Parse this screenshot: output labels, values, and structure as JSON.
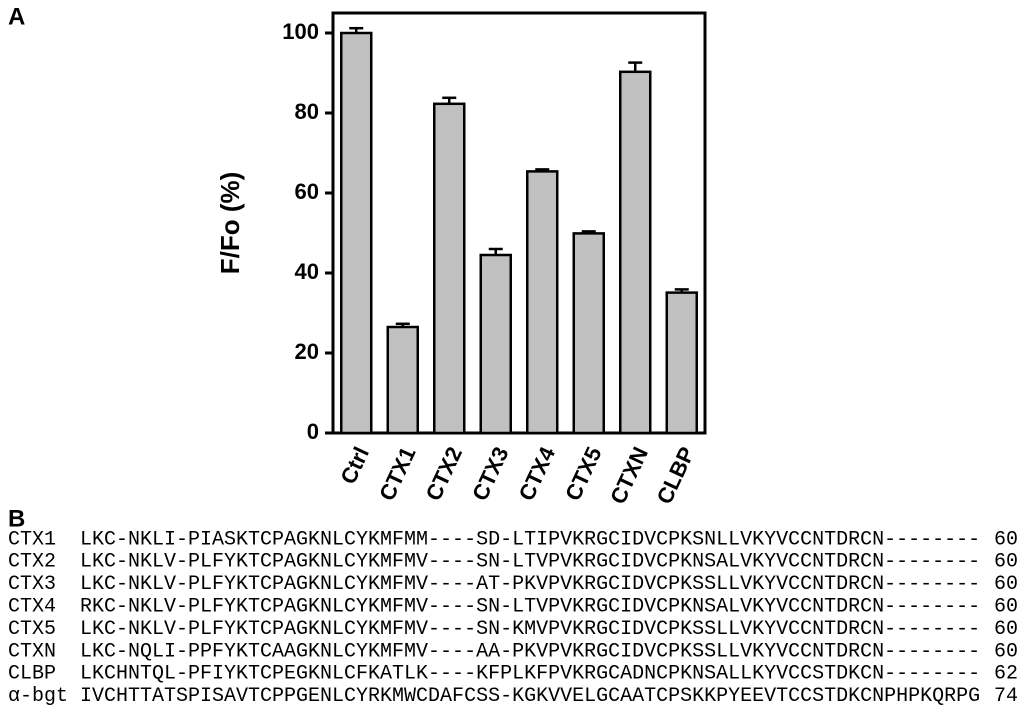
{
  "panel_labels": [
    "A",
    "B"
  ],
  "chart_data": {
    "type": "bar",
    "y_label": "F/Fo (%)",
    "categories": [
      "Ctrl",
      "CTX1",
      "CTX2",
      "CTX3",
      "CTX4",
      "CTX5",
      "CTXN",
      "CLBP"
    ],
    "values": [
      100,
      26.5,
      82.3,
      44.5,
      65.4,
      49.9,
      90.3,
      35.1
    ],
    "errors": [
      1.2,
      0.8,
      1.5,
      1.5,
      0.5,
      0.5,
      2.3,
      0.8
    ],
    "color": "#c0c0c0",
    "ylim": [
      0,
      105
    ],
    "yticks": [
      0,
      20,
      40,
      60,
      80,
      100
    ],
    "grid": false
  },
  "alignment": {
    "rows": [
      [
        "CTX1",
        "LKC-NKLI-PIASKTCPAGKNLCYKMFMM----SD-LTIPVKRGCIDVCPKSNLLVKYVCCNTDRCN--------",
        "60"
      ],
      [
        "CTX2",
        "LKC-NKLV-PLFYKTCPAGKNLCYKMFMV----SN-LTVPVKRGCIDVCPKNSALVKYVCCNTDRCN--------",
        "60"
      ],
      [
        "CTX3",
        "LKC-NKLV-PLFYKTCPAGKNLCYKMFMV----AT-PKVPVKRGCIDVCPKSSLLVKYVCCNTDRCN--------",
        "60"
      ],
      [
        "CTX4",
        "RKC-NKLV-PLFYKTCPAGKNLCYKMFMV----SN-LTVPVKRGCIDVCPKNSALVKYVCCNTDRCN--------",
        "60"
      ],
      [
        "CTX5",
        "LKC-NKLV-PLFYKTCPAGKNLCYKMFMV----SN-KMVPVKRGCIDVCPKSSLLVKYVCCNTDRCN--------",
        "60"
      ],
      [
        "CTXN",
        "LKC-NQLI-PPFYKTCAAGKNLCYKMFMV----AA-PKVPVKRGCIDVCPKSSLLVKYVCCNTDRCN--------",
        "60"
      ],
      [
        "CLBP",
        "LKCHNTQL-PFIYKTCPEGKNLCFKATLK----KFPLKFPVKRGCADNCPKNSALLKYVCCSTDKCN--------",
        "62"
      ],
      [
        "α-bgt",
        "IVCHTTATSPISAVTCPPGENLCYRKMWCDAFCSS-KGKVVELGCAATCPSKKPYEEVTCCSTDKCNPHPKQRPG",
        "74"
      ]
    ]
  }
}
